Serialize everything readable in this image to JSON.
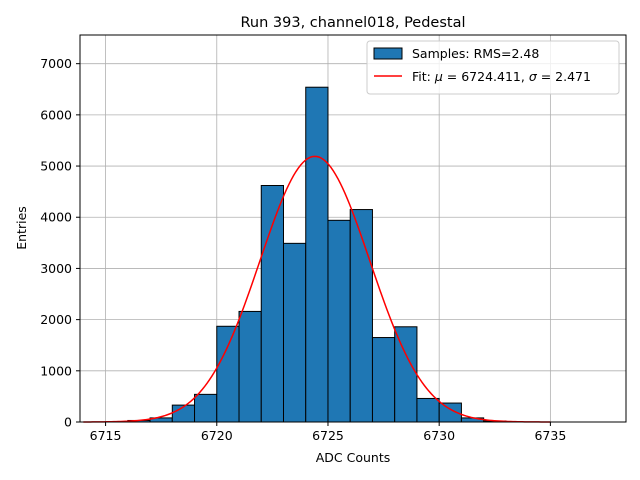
{
  "chart_data": {
    "type": "bar",
    "title": "Run 393, channel018, Pedestal",
    "xlabel": "ADC Counts",
    "ylabel": "Entries",
    "xlim": [
      6713.85,
      6738.4
    ],
    "ylim": [
      0,
      7560
    ],
    "xticks": [
      6715,
      6720,
      6725,
      6730,
      6735
    ],
    "yticks": [
      0,
      1000,
      2000,
      3000,
      4000,
      5000,
      6000,
      7000
    ],
    "grid": true,
    "legend_position": "top-right",
    "colors": {
      "bars": "#1f77b4",
      "fit": "#ff0000",
      "bar_edge": "#000000",
      "grid": "#b0b0b0"
    },
    "histogram": {
      "name": "Samples: RMS=2.48",
      "bin_width": 1,
      "bins": [
        {
          "left": 6716,
          "count": 30
        },
        {
          "left": 6717,
          "count": 80
        },
        {
          "left": 6718,
          "count": 330
        },
        {
          "left": 6719,
          "count": 540
        },
        {
          "left": 6720,
          "count": 1870
        },
        {
          "left": 6721,
          "count": 2160
        },
        {
          "left": 6722,
          "count": 4620
        },
        {
          "left": 6723,
          "count": 3490
        },
        {
          "left": 6724,
          "count": 6540
        },
        {
          "left": 6725,
          "count": 3940
        },
        {
          "left": 6726,
          "count": 4150
        },
        {
          "left": 6727,
          "count": 1650
        },
        {
          "left": 6728,
          "count": 1860
        },
        {
          "left": 6729,
          "count": 460
        },
        {
          "left": 6730,
          "count": 370
        },
        {
          "left": 6731,
          "count": 80
        },
        {
          "left": 6732,
          "count": 20
        }
      ]
    },
    "fit": {
      "name_prefix": "Fit: ",
      "name_mu": "μ",
      "name_mid": " = 6724.411, ",
      "name_sigma": "σ",
      "name_suffix": " = 2.471",
      "function": "gaussian",
      "mu": 6724.411,
      "sigma": 2.471,
      "amplitude": 5190,
      "x_range": [
        6714,
        6735
      ]
    }
  }
}
